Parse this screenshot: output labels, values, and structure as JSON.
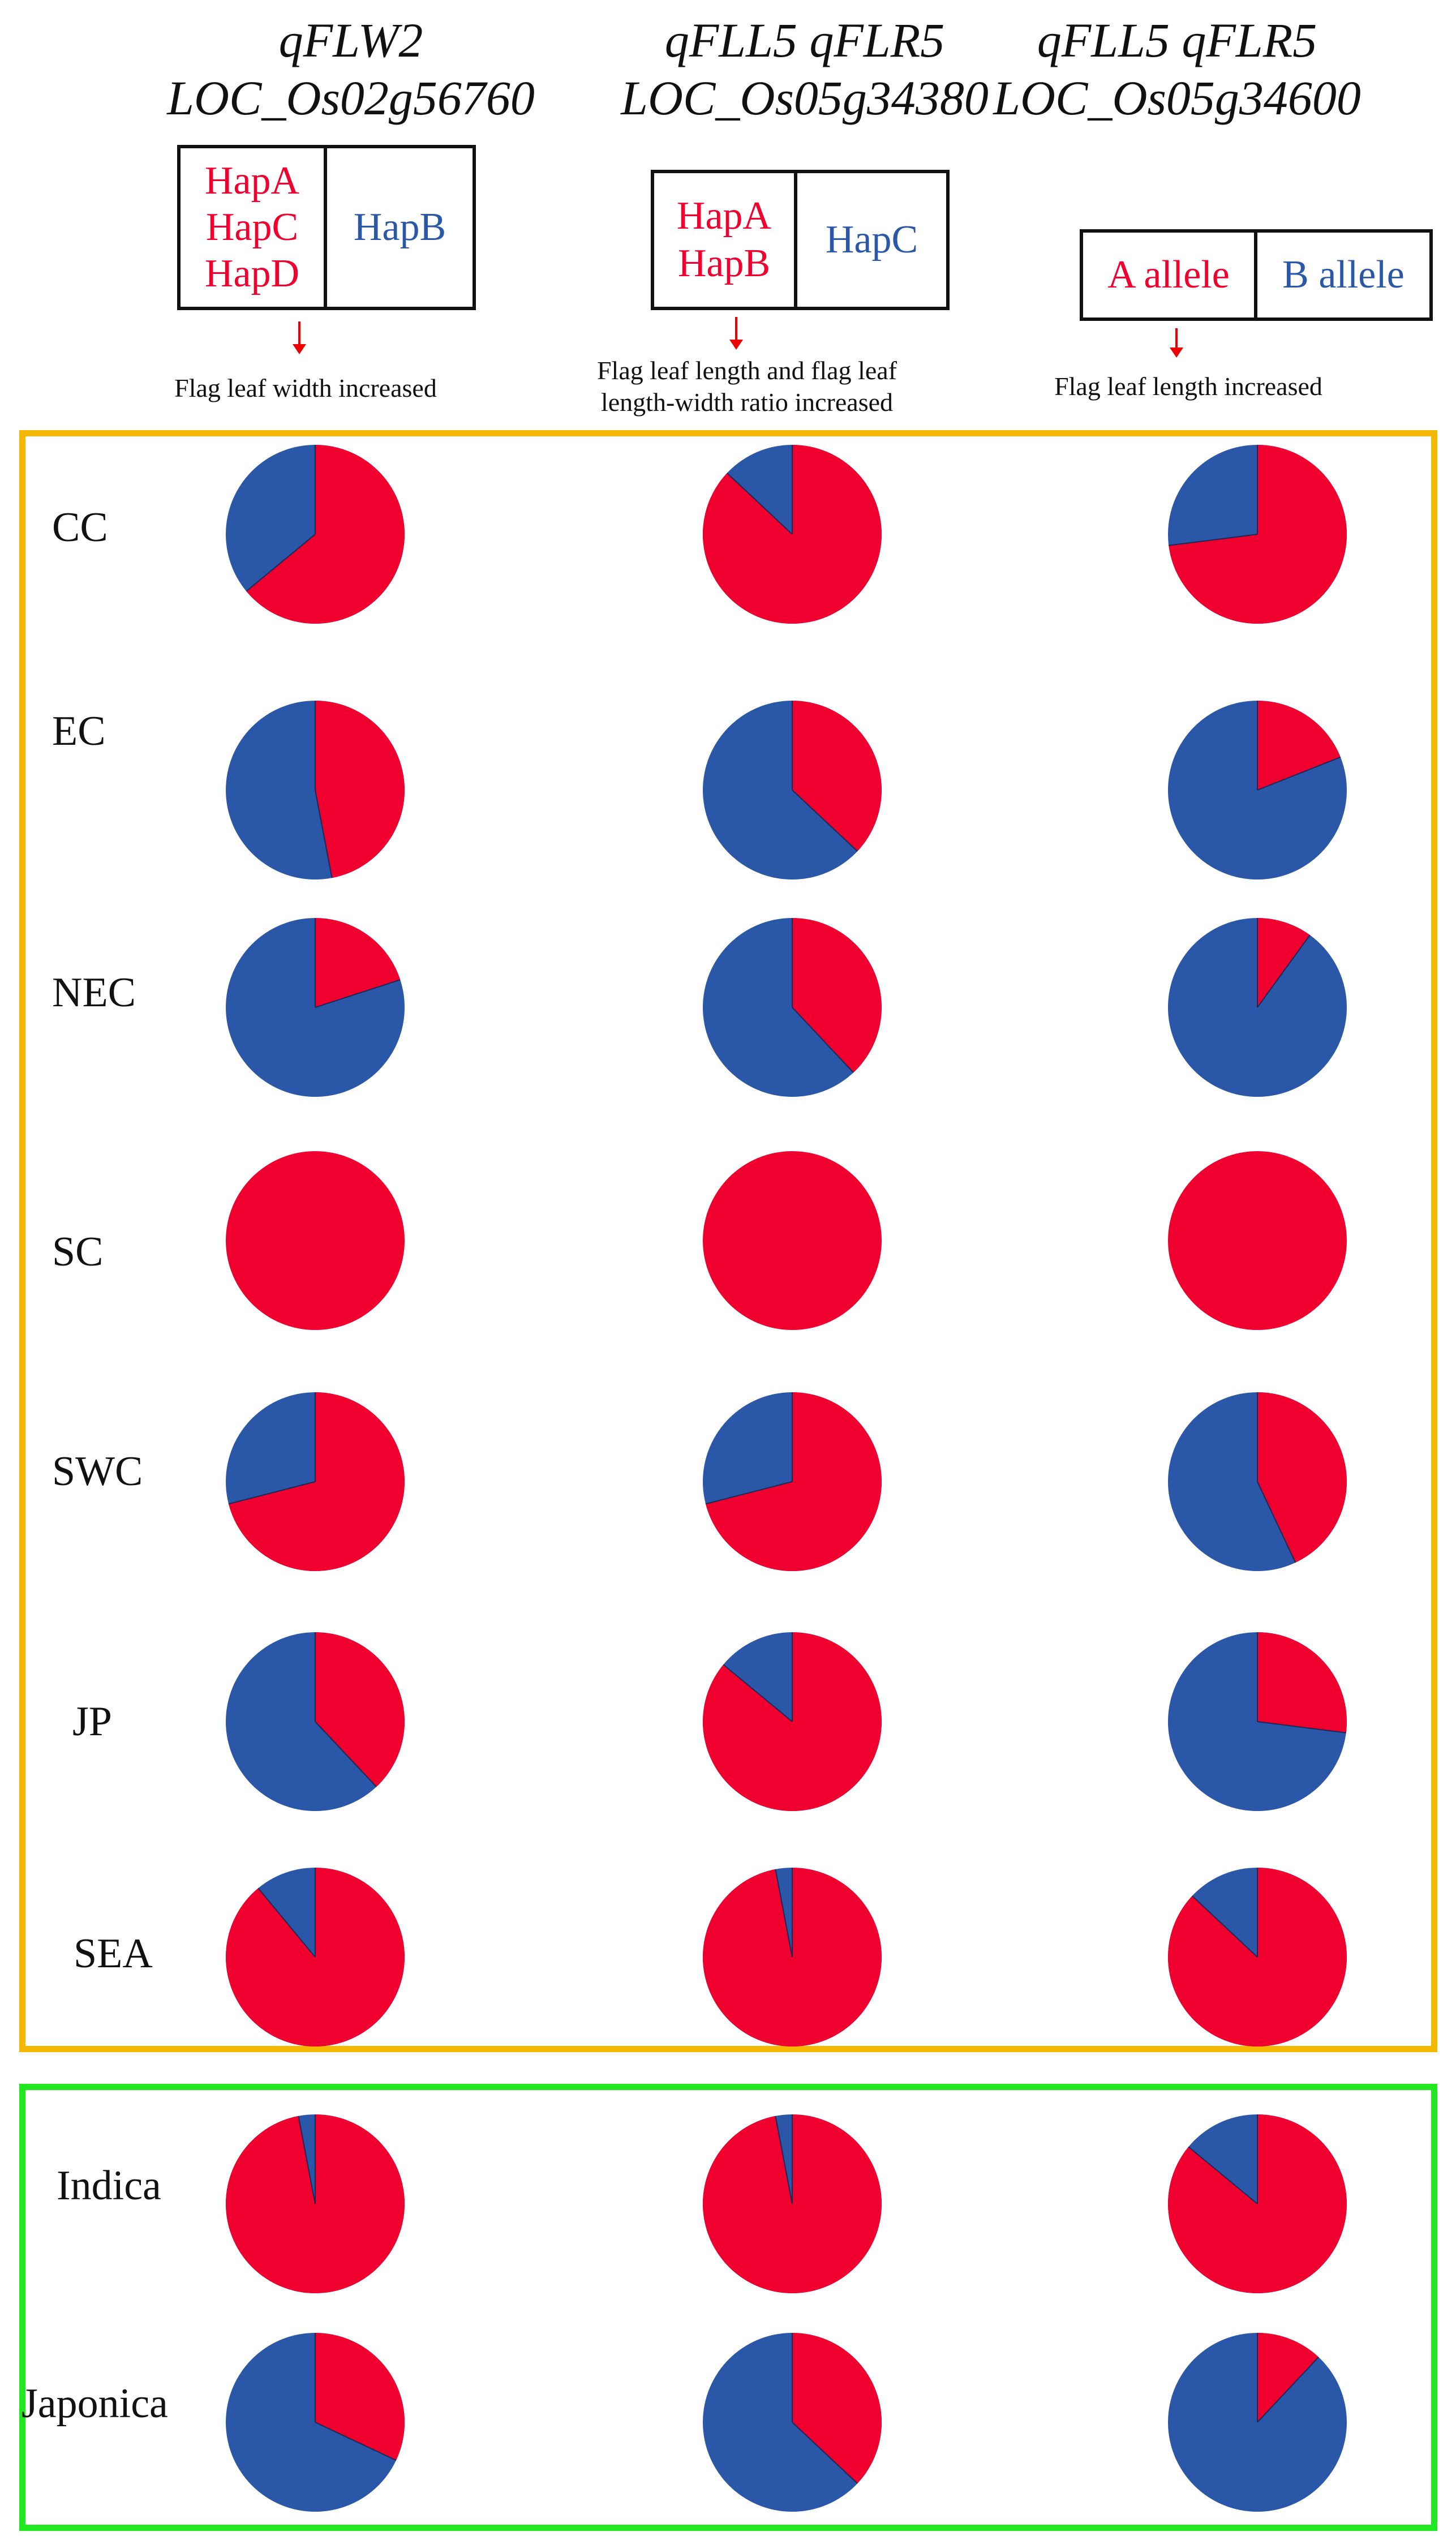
{
  "columns": [
    {
      "gene": "qFLW2",
      "locus": "LOC_Os02g56760",
      "hap_red": [
        "HapA",
        "HapC",
        "HapD"
      ],
      "hap_blue": "HapB",
      "caption": [
        "Flag leaf width increased"
      ]
    },
    {
      "gene": "qFLL5 qFLR5",
      "locus": "LOC_Os05g34380",
      "hap_red": [
        "HapA",
        "HapB"
      ],
      "hap_blue": "HapC",
      "caption": [
        "Flag leaf length and flag leaf",
        "length-width ratio increased"
      ]
    },
    {
      "gene": "qFLL5 qFLR5",
      "locus": "LOC_Os05g34600",
      "hap_red": [
        "A allele"
      ],
      "hap_blue": "B allele",
      "caption": [
        "Flag leaf length increased"
      ]
    }
  ],
  "colors": {
    "red": "#f0002e",
    "blue": "#2b57a8",
    "region_frame": "#f5b800",
    "subspecies_frame": "#22e822"
  },
  "chart_data": {
    "type": "pie",
    "rows": [
      "CC",
      "EC",
      "NEC",
      "SC",
      "SWC",
      "JP",
      "SEA",
      "Indica",
      "Japonica"
    ],
    "series_columns": [
      "LOC_Os02g56760",
      "LOC_Os05g34380",
      "LOC_Os05g34600"
    ],
    "slices": [
      "red",
      "blue"
    ],
    "red_fraction": [
      [
        0.64,
        0.87,
        0.73
      ],
      [
        0.47,
        0.37,
        0.19
      ],
      [
        0.2,
        0.38,
        0.1
      ],
      [
        1.0,
        1.0,
        1.0
      ],
      [
        0.71,
        0.71,
        0.43
      ],
      [
        0.38,
        0.86,
        0.27
      ],
      [
        0.89,
        0.97,
        0.87
      ],
      [
        0.97,
        0.97,
        0.86
      ],
      [
        0.32,
        0.37,
        0.12
      ]
    ],
    "groups": [
      {
        "frame": "region_frame",
        "rows": [
          "CC",
          "EC",
          "NEC",
          "SC",
          "SWC",
          "JP",
          "SEA"
        ]
      },
      {
        "frame": "subspecies_frame",
        "rows": [
          "Indica",
          "Japonica"
        ]
      }
    ]
  }
}
